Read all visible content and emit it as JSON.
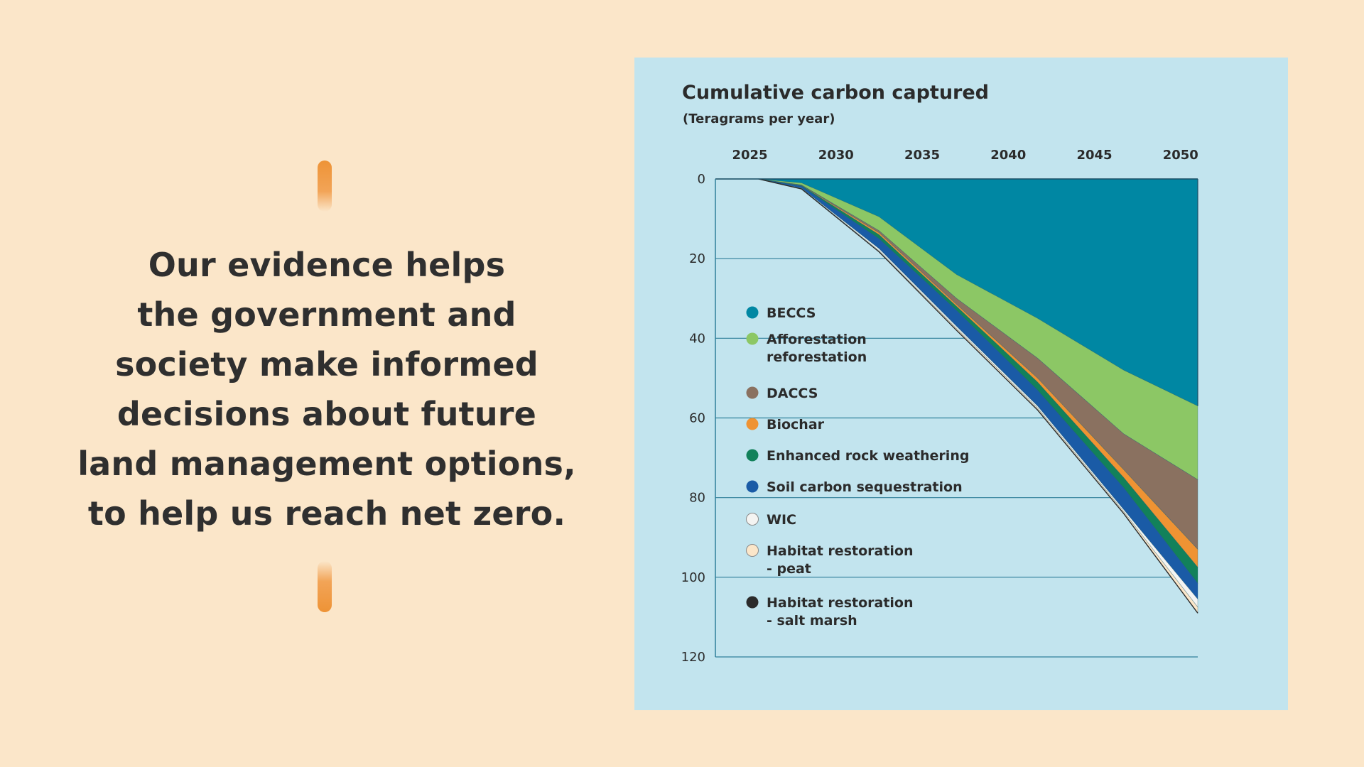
{
  "quote": {
    "lines": [
      "Our evidence helps",
      "the government and",
      "society make informed",
      "decisions about future",
      "land management options,",
      "to help us reach net zero."
    ]
  },
  "colors": {
    "background": "#fbe6c9",
    "panel": "#c2e4ee",
    "accent": "#ee9336",
    "text": "#2f2f2f"
  },
  "chart_data": {
    "type": "area",
    "stacked": true,
    "title": "Cumulative carbon captured",
    "subtitle": "(Teragrams per year)",
    "x_axis_position": "top",
    "x_ticks": [
      "2025",
      "2030",
      "2035",
      "2040",
      "2045",
      "2050"
    ],
    "y_ticks": [
      "0",
      "20",
      "40",
      "60",
      "80",
      "100",
      "120"
    ],
    "y_inverted": true,
    "ylim": [
      0,
      120
    ],
    "xlim": [
      2023,
      2051
    ],
    "grid": "horizontal",
    "x": [
      2025.5,
      2028,
      2032.5,
      2037,
      2041.7,
      2046.7,
      2051
    ],
    "series": [
      {
        "name": "BECCS",
        "color": "#0087a3",
        "values": [
          0,
          0,
          0,
          0,
          0,
          0,
          0
        ]
      },
      {
        "name": "Afforestation reforestation",
        "color": "#8cc765",
        "values": [
          0,
          1,
          9.5,
          24,
          35,
          48,
          57
        ]
      },
      {
        "name": "DACCS",
        "color": "#8a7160",
        "values": [
          0,
          1.5,
          13,
          30,
          45,
          64,
          75.5
        ]
      },
      {
        "name": "Biochar",
        "color": "#ef9333",
        "values": [
          0,
          1.6,
          13.5,
          31.5,
          50,
          73,
          93
        ]
      },
      {
        "name": "Enhanced rock weathering",
        "color": "#12815a",
        "values": [
          0,
          1.7,
          14,
          32,
          51,
          75,
          97.5
        ]
      },
      {
        "name": "Soil carbon sequestration",
        "color": "#1a5ba6",
        "values": [
          0,
          1.8,
          15,
          33,
          53,
          77.5,
          101.5
        ]
      },
      {
        "name": "WIC",
        "color": "#f4f4f2",
        "values": [
          0,
          2.3,
          17.5,
          37,
          57,
          83,
          105.5
        ]
      },
      {
        "name": "Habitat restoration - peat",
        "color": "#fbe6c9",
        "values": [
          0,
          2.4,
          18,
          37.5,
          57.5,
          83.5,
          107.5
        ]
      },
      {
        "name": "Habitat restoration - salt marsh",
        "color": "#2b2b2b",
        "values": [
          0,
          2.5,
          18.3,
          38,
          58,
          84,
          109
        ]
      }
    ],
    "legend": {
      "placement": "inside-left",
      "entries": [
        {
          "lines": [
            "BECCS"
          ],
          "color": "#0087a3"
        },
        {
          "lines": [
            "Afforestation",
            "reforestation"
          ],
          "color": "#8cc765"
        },
        {
          "lines": [
            "DACCS"
          ],
          "color": "#8a7160"
        },
        {
          "lines": [
            "Biochar"
          ],
          "color": "#ef9333"
        },
        {
          "lines": [
            "Enhanced rock weathering"
          ],
          "color": "#12815a"
        },
        {
          "lines": [
            "Soil carbon sequestration"
          ],
          "color": "#1a5ba6"
        },
        {
          "lines": [
            "WIC"
          ],
          "color": "#f4f4f2"
        },
        {
          "lines": [
            "Habitat restoration",
            " - peat"
          ],
          "color": "#fbe6c9"
        },
        {
          "lines": [
            "Habitat restoration",
            " - salt marsh"
          ],
          "color": "#2b2b2b"
        }
      ]
    }
  }
}
